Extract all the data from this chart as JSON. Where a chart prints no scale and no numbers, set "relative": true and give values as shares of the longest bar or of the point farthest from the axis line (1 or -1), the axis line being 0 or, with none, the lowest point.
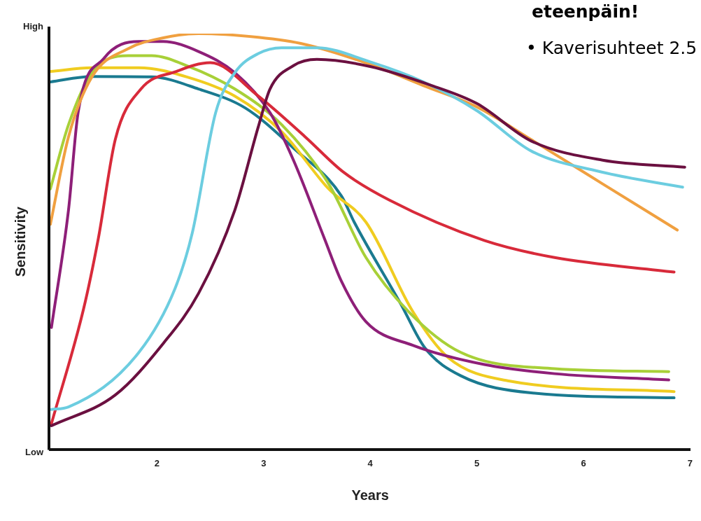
{
  "chart_data": {
    "type": "line",
    "relative": true,
    "xlabel": "Years",
    "ylabel": "Sensitivity",
    "xlim": [
      1,
      7
    ],
    "xticks": [
      2,
      3,
      4,
      5,
      6,
      7
    ],
    "grid": false,
    "legend": false,
    "marker": "none",
    "line_style": "solid",
    "annotations": [
      "High",
      "Low",
      "eteenpäin!",
      "•   Kaverisuhteet 2.5"
    ],
    "series": [
      {
        "color": "#6b1040",
        "x": [
          1.01,
          1.61,
          2.06,
          2.39,
          2.73,
          2.95,
          3.06,
          3.28,
          3.5,
          4.0,
          4.58,
          5.0,
          5.51,
          6.18,
          6.95
        ],
        "values": [
          0.058,
          0.132,
          0.256,
          0.376,
          0.576,
          0.776,
          0.867,
          0.923,
          0.938,
          0.921,
          0.875,
          0.832,
          0.742,
          0.696,
          0.679
        ]
      },
      {
        "color": "#6ccde0",
        "x": [
          1.01,
          1.17,
          1.83,
          2.17,
          2.33,
          2.55,
          2.73,
          2.95,
          3.17,
          3.5,
          4.0,
          4.5,
          5.0,
          5.51,
          6.18,
          6.93
        ],
        "values": [
          0.097,
          0.103,
          0.234,
          0.388,
          0.52,
          0.81,
          0.906,
          0.952,
          0.966,
          0.966,
          0.932,
          0.884,
          0.815,
          0.718,
          0.667,
          0.631
        ]
      },
      {
        "color": "#f0a040",
        "x": [
          1.0,
          1.17,
          1.39,
          1.73,
          2.06,
          2.39,
          2.95,
          3.39,
          4.0,
          4.5,
          5.0,
          5.5,
          6.18,
          6.88
        ],
        "values": [
          0.542,
          0.752,
          0.896,
          0.964,
          0.99,
          1.0,
          0.991,
          0.974,
          0.926,
          0.875,
          0.824,
          0.747,
          0.639,
          0.528
        ]
      },
      {
        "color": "#d82a3a",
        "x": [
          1.01,
          1.31,
          1.45,
          1.61,
          1.85,
          2.18,
          2.5,
          2.95,
          3.39,
          3.75,
          4.18,
          5.07,
          5.73,
          6.85
        ],
        "values": [
          0.063,
          0.337,
          0.508,
          0.747,
          0.867,
          0.909,
          0.93,
          0.85,
          0.752,
          0.667,
          0.6,
          0.503,
          0.462,
          0.427
        ]
      },
      {
        "color": "#8e1f78",
        "x": [
          1.01,
          1.17,
          1.26,
          1.5,
          1.83,
          2.06,
          2.39,
          2.73,
          3.06,
          3.28,
          3.57,
          3.73,
          3.96,
          4.4,
          5.07,
          5.73,
          6.8
        ],
        "values": [
          0.294,
          0.576,
          0.81,
          0.94,
          0.981,
          0.981,
          0.957,
          0.906,
          0.81,
          0.696,
          0.508,
          0.405,
          0.308,
          0.251,
          0.205,
          0.183,
          0.168
        ]
      },
      {
        "color": "#a8d038",
        "x": [
          1.0,
          1.17,
          1.39,
          1.73,
          1.95,
          2.28,
          2.73,
          3.17,
          3.61,
          3.96,
          4.36,
          4.85,
          5.73,
          6.8
        ],
        "values": [
          0.627,
          0.781,
          0.906,
          0.947,
          0.947,
          0.923,
          0.867,
          0.781,
          0.639,
          0.462,
          0.332,
          0.234,
          0.195,
          0.188
        ]
      },
      {
        "color": "#f0cc20",
        "x": [
          1.0,
          1.39,
          1.83,
          2.28,
          2.73,
          3.17,
          3.61,
          3.96,
          4.4,
          4.73,
          5.29,
          6.85
        ],
        "values": [
          0.909,
          0.918,
          0.918,
          0.896,
          0.85,
          0.764,
          0.627,
          0.547,
          0.332,
          0.222,
          0.166,
          0.14
        ]
      },
      {
        "color": "#1a7a90",
        "x": [
          1.0,
          1.39,
          1.95,
          2.39,
          2.83,
          3.28,
          3.73,
          3.85,
          4.29,
          4.51,
          4.85,
          5.51,
          6.85
        ],
        "values": [
          0.884,
          0.897,
          0.896,
          0.867,
          0.821,
          0.725,
          0.61,
          0.547,
          0.349,
          0.246,
          0.178,
          0.137,
          0.125
        ]
      }
    ]
  }
}
